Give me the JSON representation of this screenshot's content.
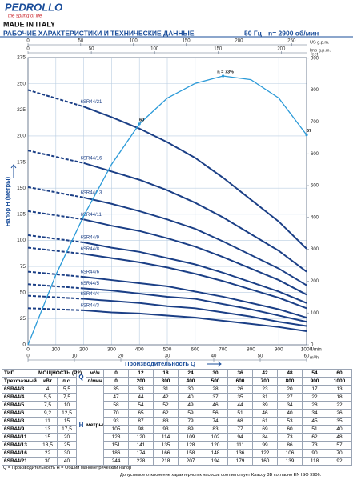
{
  "header": {
    "brand": "PEDROLLO",
    "tagline": "the spring of life",
    "origin": "MADE IN ITALY",
    "title": "РАБОЧИЕ ХАРАКТЕРИСТИКИ И ТЕХНИЧЕСКИЕ ДАННЫЕ",
    "frequency": "50 Гц",
    "speed": "n= 2900 об/мин"
  },
  "chart_data": {
    "type": "line",
    "x_label": "Производительность Q",
    "y_label": "Напор H (метры)",
    "x_unit": "l/min",
    "x2_unit": "US g.p.m.",
    "x3_unit": "Imp g.p.m.",
    "x4_unit": "m³/h",
    "y2_unit": "feet",
    "xlim": [
      0,
      1000
    ],
    "xticks": [
      0,
      100,
      200,
      300,
      400,
      500,
      600,
      700,
      800,
      900,
      1000
    ],
    "x2lim": [
      0,
      264.2
    ],
    "x2ticks": [
      0,
      50,
      100,
      150,
      200,
      250
    ],
    "x3lim": [
      0,
      220
    ],
    "x3ticks": [
      0,
      50,
      100,
      150,
      200
    ],
    "x4lim": [
      0,
      60
    ],
    "x4ticks": [
      0,
      10,
      20,
      30,
      40,
      50,
      60
    ],
    "ylim": [
      0,
      275
    ],
    "yticks": [
      0,
      25,
      50,
      75,
      100,
      125,
      150,
      175,
      200,
      225,
      250,
      275
    ],
    "y2lim": [
      0,
      902
    ],
    "y2ticks": [
      0,
      100,
      200,
      300,
      400,
      500,
      600,
      700,
      800,
      900
    ],
    "grid": true,
    "x": [
      0,
      200,
      300,
      400,
      500,
      600,
      700,
      800,
      900,
      1000
    ],
    "series": [
      {
        "name": "6SR44/3",
        "color": "#1b3f86",
        "values": [
          35,
          33,
          31,
          30,
          28,
          26,
          23,
          20,
          17,
          13
        ]
      },
      {
        "name": "6SR44/4",
        "color": "#1b3f86",
        "values": [
          47,
          44,
          42,
          40,
          37,
          35,
          31,
          27,
          22,
          18
        ]
      },
      {
        "name": "6SR44/5",
        "color": "#1b3f86",
        "values": [
          58,
          54,
          52,
          49,
          46,
          44,
          39,
          34,
          28,
          22
        ]
      },
      {
        "name": "6SR44/6",
        "color": "#1b3f86",
        "values": [
          70,
          65,
          62,
          59,
          56,
          51,
          46,
          40,
          34,
          26
        ]
      },
      {
        "name": "6SR44/8",
        "color": "#1b3f86",
        "values": [
          93,
          87,
          83,
          79,
          74,
          68,
          61,
          53,
          45,
          35
        ]
      },
      {
        "name": "6SR44/9",
        "color": "#1b3f86",
        "values": [
          105,
          98,
          93,
          89,
          83,
          77,
          69,
          60,
          51,
          40
        ]
      },
      {
        "name": "6SR44/11",
        "color": "#1b3f86",
        "values": [
          128,
          120,
          114,
          109,
          102,
          94,
          84,
          73,
          62,
          48
        ]
      },
      {
        "name": "6SR44/13",
        "color": "#1b3f86",
        "values": [
          151,
          141,
          135,
          128,
          120,
          111,
          99,
          86,
          73,
          57
        ]
      },
      {
        "name": "6SR44/16",
        "color": "#1b3f86",
        "values": [
          186,
          174,
          166,
          158,
          148,
          136,
          122,
          106,
          90,
          70
        ]
      },
      {
        "name": "6SR44/21",
        "color": "#1b3f86",
        "values": [
          244,
          228,
          218,
          207,
          194,
          179,
          160,
          139,
          118,
          92
        ]
      }
    ],
    "efficiency": {
      "color": "#2b9ad8",
      "ylim": [
        0,
        78
      ],
      "x": [
        0,
        100,
        200,
        300,
        400,
        500,
        600,
        700,
        800,
        900,
        1000
      ],
      "values": [
        0,
        19,
        35,
        49,
        60,
        67,
        71,
        73,
        72,
        67,
        57
      ],
      "value_labels": [
        null,
        null,
        null,
        null,
        "60",
        null,
        null,
        "η = 73%",
        null,
        null,
        "57"
      ]
    }
  },
  "table": {
    "type_head": "ТИП",
    "power_head": "МОЩНОСТЬ (P2)",
    "phase": "Трехфазный",
    "kw": "кВт",
    "hp": "л.с.",
    "q_symbol": "Q",
    "q_units": [
      "м³/ч",
      "л/мин"
    ],
    "q_m3h": [
      0,
      12,
      18,
      24,
      30,
      36,
      42,
      48,
      54,
      60
    ],
    "q_lmin": [
      0,
      200,
      300,
      400,
      500,
      600,
      700,
      800,
      900,
      1000
    ],
    "h_symbol": "H",
    "h_unit": "метры",
    "rows": [
      [
        "6SR44/3",
        "4",
        "5,5",
        35,
        33,
        31,
        30,
        28,
        26,
        23,
        20,
        17,
        13
      ],
      [
        "6SR44/4",
        "5,5",
        "7,5",
        47,
        44,
        42,
        40,
        37,
        35,
        31,
        27,
        22,
        18
      ],
      [
        "6SR44/5",
        "7,5",
        "10",
        58,
        54,
        52,
        49,
        46,
        44,
        39,
        34,
        28,
        22
      ],
      [
        "6SR44/6",
        "9,2",
        "12,5",
        70,
        65,
        62,
        59,
        56,
        51,
        46,
        40,
        34,
        26
      ],
      [
        "6SR44/8",
        "11",
        "15",
        93,
        87,
        83,
        79,
        74,
        68,
        61,
        53,
        45,
        35
      ],
      [
        "6SR44/9",
        "13",
        "17,5",
        105,
        98,
        93,
        89,
        83,
        77,
        69,
        60,
        51,
        40
      ],
      [
        "6SR44/11",
        "15",
        "20",
        128,
        120,
        114,
        109,
        102,
        94,
        84,
        73,
        62,
        48
      ],
      [
        "6SR44/13",
        "18,5",
        "25",
        151,
        141,
        135,
        128,
        120,
        111,
        99,
        86,
        73,
        57
      ],
      [
        "6SR44/16",
        "22",
        "30",
        186,
        174,
        166,
        158,
        148,
        136,
        122,
        106,
        90,
        70
      ],
      [
        "6SR44/21",
        "30",
        "40",
        244,
        228,
        218,
        207,
        194,
        179,
        160,
        139,
        118,
        92
      ]
    ]
  },
  "footer": {
    "legend": "Q = Производительность   H = Общий манометрический напор",
    "note": "Допустимое отклонение характеристик насосов соответствует Классу 3B согласно EN ISO 9906."
  }
}
